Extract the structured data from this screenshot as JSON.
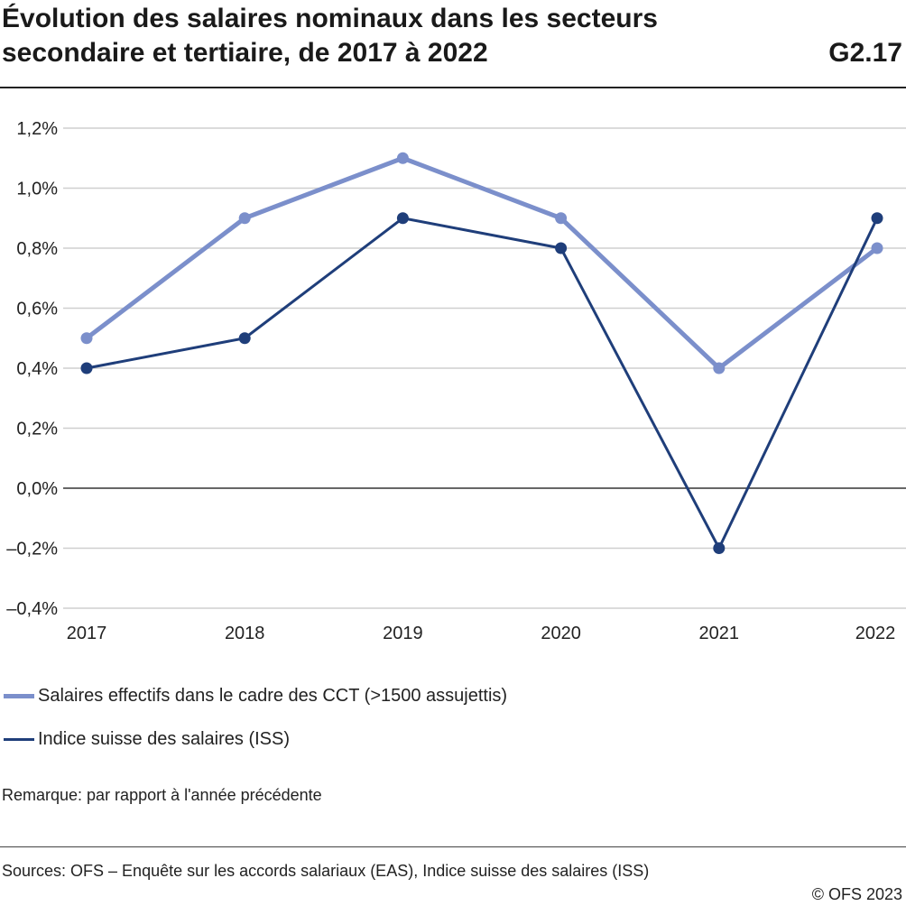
{
  "header": {
    "title": "Évolution des salaires nominaux dans les secteurs secondaire et tertiaire, de 2017 à 2022",
    "chart_id": "G2.17"
  },
  "chart_data": {
    "type": "line",
    "title": "Évolution des salaires nominaux dans les secteurs secondaire et tertiaire, de 2017 à 2022",
    "x": [
      "2017",
      "2018",
      "2019",
      "2020",
      "2021",
      "2022"
    ],
    "series": [
      {
        "name": "Salaires effectifs dans le cadre des CCT (>1500 assujettis)",
        "values": [
          0.5,
          0.9,
          1.1,
          0.9,
          0.4,
          0.8
        ],
        "color": "#7b8fcb"
      },
      {
        "name": "Indice suisse des salaires (ISS)",
        "values": [
          0.4,
          0.5,
          0.9,
          0.8,
          -0.2,
          0.9
        ],
        "color": "#1f3e7a"
      }
    ],
    "ylim": [
      -0.4,
      1.2
    ],
    "yticks": [
      "1,2%",
      "1,0%",
      "0,8%",
      "0,6%",
      "0,4%",
      "0,2%",
      "0,0%",
      "–0,2%",
      "–0,4%"
    ],
    "ytick_values": [
      1.2,
      1.0,
      0.8,
      0.6,
      0.4,
      0.2,
      0.0,
      -0.2,
      -0.4
    ],
    "grid": true,
    "legend": "bottom"
  },
  "legend": {
    "item1": "Salaires effectifs dans le cadre des CCT (>1500 assujettis)",
    "item2": "Indice suisse des salaires (ISS)"
  },
  "note": "Remarque: par rapport à l'année précédente",
  "footer": {
    "sources": "Sources: OFS – Enquête sur les accords salariaux (EAS), Indice suisse des salaires (ISS)",
    "copyright": "© OFS 2023"
  }
}
